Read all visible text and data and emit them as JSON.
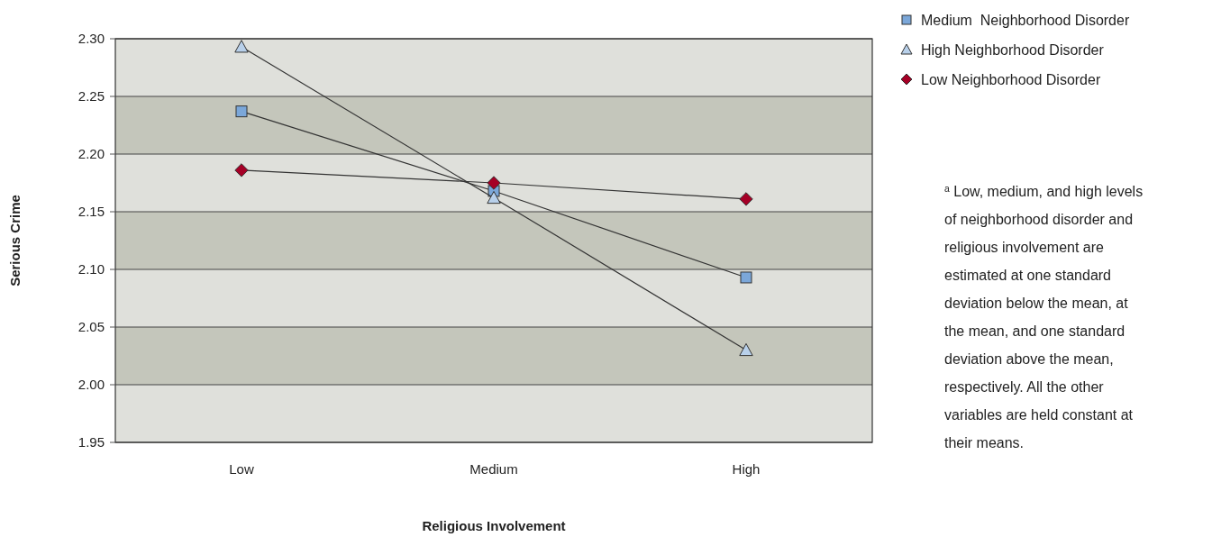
{
  "chart_data": {
    "type": "line",
    "xlabel": "Religious Involvement",
    "ylabel": "Serious Crime",
    "categories": [
      "Low",
      "Medium",
      "High"
    ],
    "series": [
      {
        "name": "Medium  Neighborhood Disorder",
        "color": "#7ba7d9",
        "marker": "square",
        "values": [
          2.237,
          2.168,
          2.093
        ]
      },
      {
        "name": "High Neighborhood Disorder",
        "color": "#b8d0ea",
        "marker": "triangle",
        "values": [
          2.293,
          2.162,
          2.03
        ]
      },
      {
        "name": "Low Neighborhood Disorder",
        "color": "#a50026",
        "marker": "diamond",
        "values": [
          2.186,
          2.175,
          2.161
        ]
      }
    ],
    "ylim": [
      1.95,
      2.3
    ],
    "yticks": [
      {
        "value": 1.95,
        "label": "1.95"
      },
      {
        "value": 2,
        "label": "2.00"
      },
      {
        "value": 2.05,
        "label": "2.05"
      },
      {
        "value": 2.1,
        "label": "2.10"
      },
      {
        "value": 2.15,
        "label": "2.15"
      },
      {
        "value": 2.2,
        "label": "2.20"
      },
      {
        "value": 2.25,
        "label": "2.25"
      },
      {
        "value": 2.3,
        "label": "2.30"
      }
    ],
    "grid": "y",
    "legend": "top right",
    "line_style": "solid",
    "annotations": [
      "$^{a}$ Low, medium, and high levels of neighborhood disorder and religious involvement are estimated at one standard deviation below the mean, at the mean, and one standard deviation above the mean, respectively. All the other variables are held constant at their means."
    ]
  }
}
